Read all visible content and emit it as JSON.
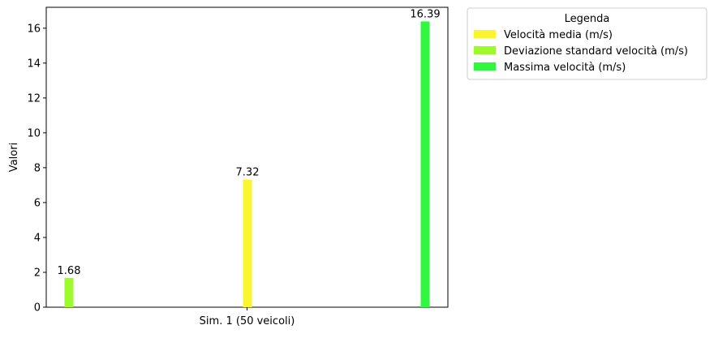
{
  "chart_data": {
    "type": "bar",
    "title": "",
    "xlabel": "",
    "ylabel": "Valori",
    "categories": [
      "Sim. 1 (50 veicoli)"
    ],
    "ylim": [
      0,
      17.2
    ],
    "yticks": [
      0,
      2,
      4,
      6,
      8,
      10,
      12,
      14,
      16
    ],
    "series": [
      {
        "name": "Velocità media (m/s)",
        "color": "#f9f52e",
        "value": 7.32,
        "label": "7.32"
      },
      {
        "name": "Deviazione standard velocità (m/s)",
        "color": "#9dfa2d",
        "value": 1.68,
        "label": "1.68"
      },
      {
        "name": "Massima velocità (m/s)",
        "color": "#2ff83f",
        "value": 16.39,
        "label": "16.39"
      }
    ],
    "draw_order": [
      1,
      0,
      2
    ],
    "legend": {
      "title": "Legenda",
      "placement": "outside-top-right"
    },
    "grid": false
  }
}
